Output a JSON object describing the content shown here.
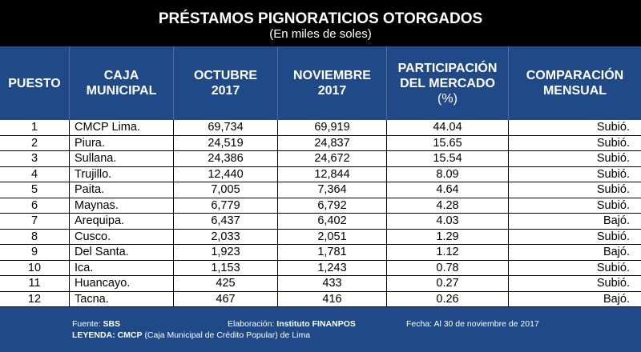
{
  "title": "PRÉSTAMOS PIGNORATICIOS OTORGADOS",
  "subtitle": "(En miles de soles)",
  "colors": {
    "header_bg": "#1f4a87",
    "row_bg": "#ffffff",
    "text_dark": "#000000",
    "text_light": "#ffffff"
  },
  "columns": {
    "puesto": "PUESTO",
    "caja_1": "CAJA",
    "caja_2": "MUNICIPAL",
    "oct_1": "OCTUBRE",
    "oct_2": "2017",
    "nov_1": "NOVIEMBRE",
    "nov_2": "2017",
    "part_1": "PARTICIPACIÓN",
    "part_2": "DEL MERCADO",
    "part_3": "(%)",
    "comp_1": "COMPARACIÓN",
    "comp_2": "MENSUAL"
  },
  "chart_data": {
    "type": "table",
    "title": "PRÉSTAMOS PIGNORATICIOS OTORGADOS",
    "subtitle": "(En miles de soles)",
    "rows": [
      {
        "puesto": "1",
        "caja": "CMCP Lima.",
        "octubre": "69,734",
        "noviembre": "69,919",
        "participacion": "44.04",
        "comparacion": "Subió."
      },
      {
        "puesto": "2",
        "caja": "Piura.",
        "octubre": "24,519",
        "noviembre": "24,837",
        "participacion": "15.65",
        "comparacion": "Subió."
      },
      {
        "puesto": "3",
        "caja": "Sullana.",
        "octubre": "24,386",
        "noviembre": "24,672",
        "participacion": "15.54",
        "comparacion": "Subió."
      },
      {
        "puesto": "4",
        "caja": "Trujillo.",
        "octubre": "12,440",
        "noviembre": "12,844",
        "participacion": "8.09",
        "comparacion": "Subió."
      },
      {
        "puesto": "5",
        "caja": "Paita.",
        "octubre": "7,005",
        "noviembre": "7,364",
        "participacion": "4.64",
        "comparacion": "Subió."
      },
      {
        "puesto": "6",
        "caja": "Maynas.",
        "octubre": "6,779",
        "noviembre": "6,792",
        "participacion": "4.28",
        "comparacion": "Subió."
      },
      {
        "puesto": "7",
        "caja": "Arequipa.",
        "octubre": "6,437",
        "noviembre": "6,402",
        "participacion": "4.03",
        "comparacion": "Bajó."
      },
      {
        "puesto": "8",
        "caja": "Cusco.",
        "octubre": "2,033",
        "noviembre": "2,051",
        "participacion": "1.29",
        "comparacion": "Subió."
      },
      {
        "puesto": "9",
        "caja": "Del Santa.",
        "octubre": "1,923",
        "noviembre": "1,781",
        "participacion": "1.12",
        "comparacion": "Bajó."
      },
      {
        "puesto": "10",
        "caja": "Ica.",
        "octubre": "1,153",
        "noviembre": "1,243",
        "participacion": "0.78",
        "comparacion": "Subió."
      },
      {
        "puesto": "11",
        "caja": "Huancayo.",
        "octubre": "425",
        "noviembre": "433",
        "participacion": "0.27",
        "comparacion": "Subió."
      },
      {
        "puesto": "12",
        "caja": "Tacna.",
        "octubre": "467",
        "noviembre": "416",
        "participacion": "0.26",
        "comparacion": "Bajó."
      }
    ]
  },
  "footer": {
    "fuente_label": "Fuente:",
    "fuente_value": "SBS",
    "elaboracion_label": "Elaboración:",
    "elaboracion_value": "Instituto FINANPOS",
    "fecha": "Fecha: Al 30 de noviembre de 2017",
    "leyenda_label": "LEYENDA:",
    "leyenda_abbr": "CMCP",
    "leyenda_text": "(Caja Municipal de Crédito Popular) de Lima"
  }
}
